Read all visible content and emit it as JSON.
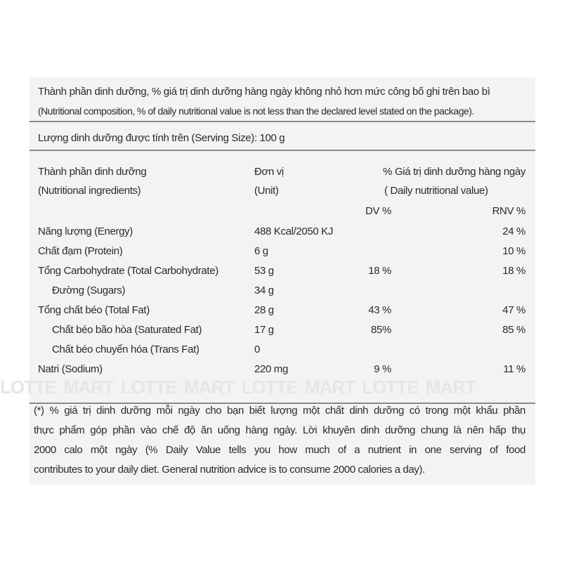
{
  "intro": {
    "line1": "Thành phần dinh dưỡng, % giá trị dinh dưỡng hàng ngày không nhỏ hơn mức công bố ghi trên bao bì",
    "line2": "(Nutritional composition, % of daily nutritional value is not less than the declared level stated on the package)."
  },
  "serving": "Lượng dinh dưỡng được tính trên (Serving Size): 100 g",
  "headers": {
    "ingredient_vi": "Thành phần dinh dưỡng",
    "ingredient_en": "(Nutritional ingredients)",
    "unit_vi": "Đơn vị",
    "unit_en": "(Unit)",
    "daily_vi": "% Giá trị dinh dưỡng hàng ngày",
    "daily_en": "( Daily nutritional value)",
    "dv": "DV %",
    "rnv": "RNV %"
  },
  "rows": [
    {
      "name": "Năng lượng (Energy)",
      "unit": "488 Kcal/2050 KJ",
      "dv": "",
      "rnv": "24 %",
      "indent": 0
    },
    {
      "name": "Chất đạm (Protein)",
      "unit": "6 g",
      "dv": "",
      "rnv": "10 %",
      "indent": 0
    },
    {
      "name": "Tổng Carbohydrate (Total Carbohydrate)",
      "unit": "53 g",
      "dv": "18 %",
      "rnv": "18 %",
      "indent": 0
    },
    {
      "name": "Đường (Sugars)",
      "unit": "34 g",
      "dv": "",
      "rnv": "",
      "indent": 1
    },
    {
      "name": "Tổng chất béo (Total Fat)",
      "unit": "28 g",
      "dv": "43 %",
      "rnv": "47 %",
      "indent": 0
    },
    {
      "name": "Chất béo bão hòa (Saturated Fat)",
      "unit": "17 g",
      "dv": "85%",
      "rnv": "85 %",
      "indent": 1
    },
    {
      "name": "Chất béo chuyển hóa (Trans Fat)",
      "unit": "0",
      "dv": "",
      "rnv": "",
      "indent": 1
    },
    {
      "name": "Natri (Sodium)",
      "unit": "220 mg",
      "dv": "9 %",
      "rnv": "11 %",
      "indent": 0
    }
  ],
  "watermark": "LOTTE MART   LOTTE MART   LOTTE MART   LOTTE MART",
  "footnote": [
    "(*) % giá trị dinh dưỡng mỗi ngày cho bạn biết lượng một chất dinh dưỡng có trong một khẩu phần",
    "thực phẩm góp phần vào chế độ ăn uống hàng ngày. Lời khuyên dinh dưỡng chung là nên hấp thụ",
    "2000 calo một ngày (% Daily Value tells you how much of a nutrient in one serving of food",
    "contributes to your daily diet. General nutrition advice is to consume 2000 calories a day)."
  ]
}
